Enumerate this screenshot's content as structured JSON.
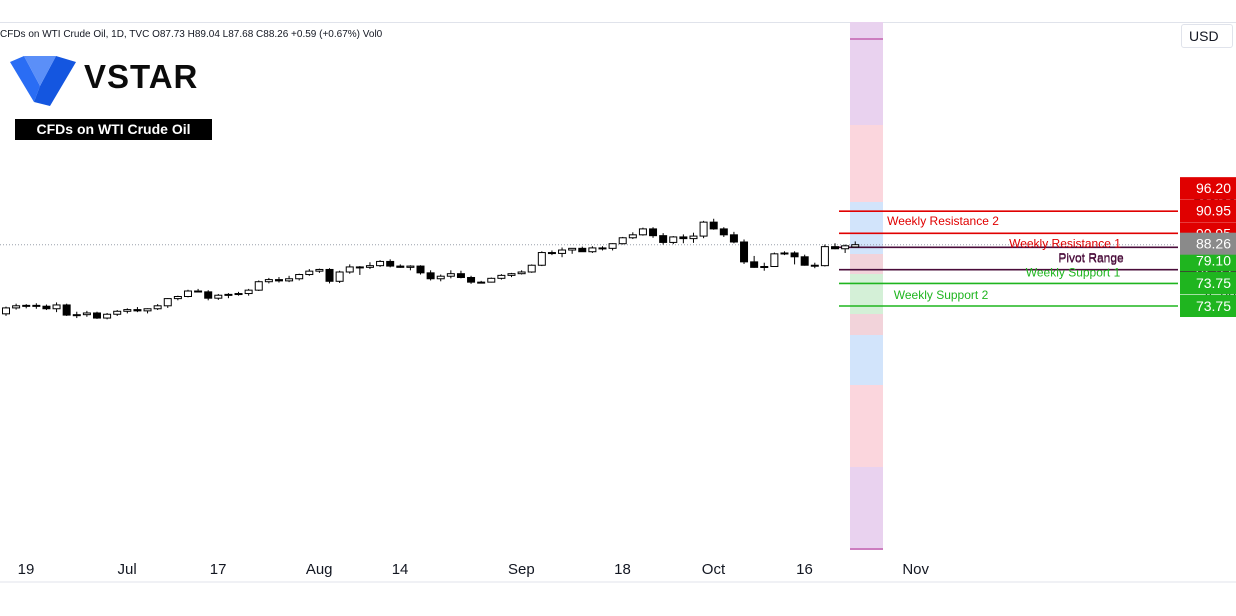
{
  "header": {
    "ticker": "CFDs on WTI Crude Oil, 1D, TVC  O87.73  H89.04  L87.68  C88.26  +0.59 (+0.67%)  Vol0",
    "currency": "USD"
  },
  "brand": {
    "name": "VSTAR",
    "badge": "CFDs on WTI Crude Oil"
  },
  "colors": {
    "resistance": "#e00000",
    "support": "#1fb51f",
    "pivot": "#4a0c3a",
    "current": "#8a8a8a"
  },
  "chart_data": {
    "type": "candlestick",
    "ylim": [
      71,
      102
    ],
    "y_ticks": [
      100,
      84,
      76
    ],
    "x_labels": [
      {
        "label": "19",
        "index": 0
      },
      {
        "label": "Jul",
        "index": 10
      },
      {
        "label": "17",
        "index": 19
      },
      {
        "label": "Aug",
        "index": 29
      },
      {
        "label": "14",
        "index": 37
      },
      {
        "label": "Sep",
        "index": 49
      },
      {
        "label": "18",
        "index": 59
      },
      {
        "label": "Oct",
        "index": 68
      },
      {
        "label": "16",
        "index": 77
      },
      {
        "label": "Nov",
        "index": 88
      }
    ],
    "candles": [
      [
        71.9,
        73.6,
        71.4,
        73.3
      ],
      [
        73.3,
        74.3,
        72.9,
        73.8
      ],
      [
        73.8,
        74.2,
        73.2,
        73.9
      ],
      [
        73.9,
        74.4,
        73.1,
        73.7
      ],
      [
        73.7,
        74.1,
        72.8,
        73.1
      ],
      [
        73.1,
        74.6,
        72.3,
        74.0
      ],
      [
        74.0,
        74.3,
        71.4,
        71.6
      ],
      [
        71.6,
        72.4,
        70.9,
        71.7
      ],
      [
        71.7,
        72.6,
        71.2,
        72.1
      ],
      [
        72.1,
        72.4,
        70.7,
        70.9
      ],
      [
        70.9,
        72.1,
        70.6,
        71.8
      ],
      [
        71.8,
        72.8,
        71.4,
        72.5
      ],
      [
        72.5,
        73.2,
        72.0,
        72.9
      ],
      [
        72.9,
        73.5,
        72.3,
        72.6
      ],
      [
        72.6,
        73.2,
        72.0,
        73.1
      ],
      [
        73.1,
        74.2,
        72.8,
        73.8
      ],
      [
        73.8,
        75.6,
        73.3,
        75.5
      ],
      [
        75.5,
        76.2,
        75.1,
        76.0
      ],
      [
        76.0,
        77.6,
        75.8,
        77.3
      ],
      [
        77.3,
        77.8,
        77.0,
        77.1
      ],
      [
        77.1,
        77.5,
        75.1,
        75.6
      ],
      [
        75.6,
        76.6,
        75.2,
        76.3
      ],
      [
        76.3,
        76.8,
        75.6,
        76.5
      ],
      [
        76.5,
        77.1,
        76.2,
        76.7
      ],
      [
        76.7,
        77.8,
        76.2,
        77.5
      ],
      [
        77.5,
        79.8,
        77.3,
        79.5
      ],
      [
        79.5,
        80.4,
        79.1,
        80.0
      ],
      [
        80.0,
        80.6,
        79.3,
        79.7
      ],
      [
        79.7,
        80.9,
        79.4,
        80.2
      ],
      [
        80.2,
        81.4,
        79.8,
        81.2
      ],
      [
        81.2,
        82.5,
        80.9,
        82.0
      ],
      [
        82.0,
        82.6,
        81.6,
        82.4
      ],
      [
        82.4,
        82.7,
        79.1,
        79.6
      ],
      [
        79.6,
        82.1,
        79.2,
        81.8
      ],
      [
        81.8,
        83.6,
        81.4,
        83.0
      ],
      [
        83.0,
        83.2,
        81.1,
        82.9
      ],
      [
        82.9,
        84.1,
        82.5,
        83.3
      ],
      [
        83.3,
        84.6,
        83.0,
        84.3
      ],
      [
        84.3,
        84.8,
        82.9,
        83.2
      ],
      [
        83.2,
        83.6,
        82.8,
        82.9
      ],
      [
        82.9,
        83.4,
        82.2,
        83.2
      ],
      [
        83.2,
        83.4,
        81.2,
        81.6
      ],
      [
        81.6,
        82.2,
        79.8,
        80.2
      ],
      [
        80.2,
        81.2,
        79.6,
        80.8
      ],
      [
        80.8,
        82.2,
        80.3,
        81.4
      ],
      [
        81.4,
        82.1,
        80.3,
        80.5
      ],
      [
        80.5,
        80.9,
        79.0,
        79.4
      ],
      [
        79.4,
        79.7,
        79.1,
        79.4
      ],
      [
        79.4,
        80.5,
        79.3,
        80.3
      ],
      [
        80.3,
        81.3,
        80.0,
        81.0
      ],
      [
        81.0,
        81.6,
        80.6,
        81.4
      ],
      [
        81.4,
        82.2,
        81.2,
        81.8
      ],
      [
        81.8,
        83.6,
        81.6,
        83.4
      ],
      [
        83.4,
        86.7,
        83.2,
        86.4
      ],
      [
        86.4,
        86.9,
        85.8,
        86.2
      ],
      [
        86.2,
        87.6,
        85.3,
        87.0
      ],
      [
        87.0,
        87.3,
        86.1,
        87.4
      ],
      [
        87.4,
        87.8,
        86.9,
        86.6
      ],
      [
        86.6,
        87.9,
        86.3,
        87.5
      ],
      [
        87.5,
        87.9,
        86.9,
        87.4
      ],
      [
        87.4,
        88.6,
        86.9,
        88.5
      ],
      [
        88.5,
        90.1,
        88.3,
        89.9
      ],
      [
        89.9,
        91.2,
        89.6,
        90.6
      ],
      [
        90.6,
        92.3,
        90.4,
        92.0
      ],
      [
        92.0,
        92.4,
        89.9,
        90.4
      ],
      [
        90.4,
        91.0,
        88.3,
        88.8
      ],
      [
        88.8,
        90.3,
        88.4,
        90.1
      ],
      [
        90.1,
        90.7,
        88.6,
        89.7
      ],
      [
        89.7,
        91.1,
        88.7,
        90.3
      ],
      [
        90.3,
        93.9,
        89.8,
        93.6
      ],
      [
        93.6,
        94.4,
        91.8,
        92.0
      ],
      [
        92.0,
        92.4,
        90.1,
        90.6
      ],
      [
        90.6,
        91.3,
        88.6,
        88.9
      ],
      [
        88.9,
        89.5,
        83.7,
        84.2
      ],
      [
        84.2,
        85.6,
        82.8,
        82.9
      ],
      [
        82.9,
        84.0,
        82.1,
        83.1
      ],
      [
        83.1,
        86.4,
        83.0,
        86.1
      ],
      [
        86.1,
        86.7,
        85.8,
        86.3
      ],
      [
        86.3,
        86.7,
        83.6,
        85.4
      ],
      [
        85.4,
        85.9,
        83.3,
        83.4
      ],
      [
        83.4,
        84.0,
        82.7,
        83.3
      ],
      [
        83.3,
        88.3,
        83.1,
        87.8
      ],
      [
        87.8,
        88.6,
        87.2,
        87.3
      ],
      [
        87.3,
        88.3,
        86.3,
        88.0
      ],
      [
        87.73,
        89.04,
        87.68,
        88.26
      ]
    ],
    "levels": [
      {
        "name": "Weekly Resistance 2",
        "value": 96.2,
        "color": "#e00000",
        "badges": [
          "96.20",
          "96.20"
        ]
      },
      {
        "name": "Weekly Resistance 1",
        "value": 90.95,
        "color": "#e00000",
        "badges": [
          "90.95",
          "90.95"
        ]
      },
      {
        "name": "Pivot Range",
        "value": 87.65,
        "color": "#4a0c3a",
        "badges": [
          "87.65"
        ]
      },
      {
        "name": "Pivot Range",
        "value": 82.35,
        "color": "#4a0c3a",
        "badges": [
          "82.35",
          "82.35"
        ]
      },
      {
        "name": "Weekly Support 1",
        "value": 79.1,
        "color": "#1fb51f",
        "badges": [
          "79.10",
          "79.10"
        ]
      },
      {
        "name": "Weekly Support 2",
        "value": 73.75,
        "color": "#1fb51f",
        "badges": [
          "73.75",
          "73.75"
        ]
      }
    ],
    "current_price": {
      "value": 88.26,
      "badge": "88.26"
    }
  }
}
